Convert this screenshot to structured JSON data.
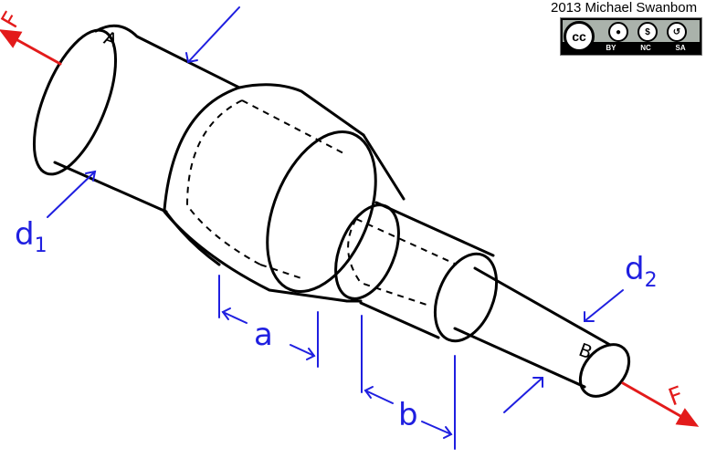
{
  "credit": "2013 Michael Swanbom",
  "license": {
    "icons": [
      "cc-icon",
      "by-icon",
      "nc-icon",
      "sa-icon"
    ],
    "main": "cc",
    "labels": [
      "BY",
      "NC",
      "SA"
    ]
  },
  "labels": {
    "force_left": "F",
    "force_right": "F",
    "end_a": "A",
    "end_b": "B",
    "d1_main": "d",
    "d1_sub": "1",
    "d2_main": "d",
    "d2_sub": "2",
    "dim_a": "a",
    "dim_b": "b"
  },
  "colors": {
    "outline": "#000000",
    "force": "#e31b1b",
    "dimension": "#1f1fe0"
  }
}
